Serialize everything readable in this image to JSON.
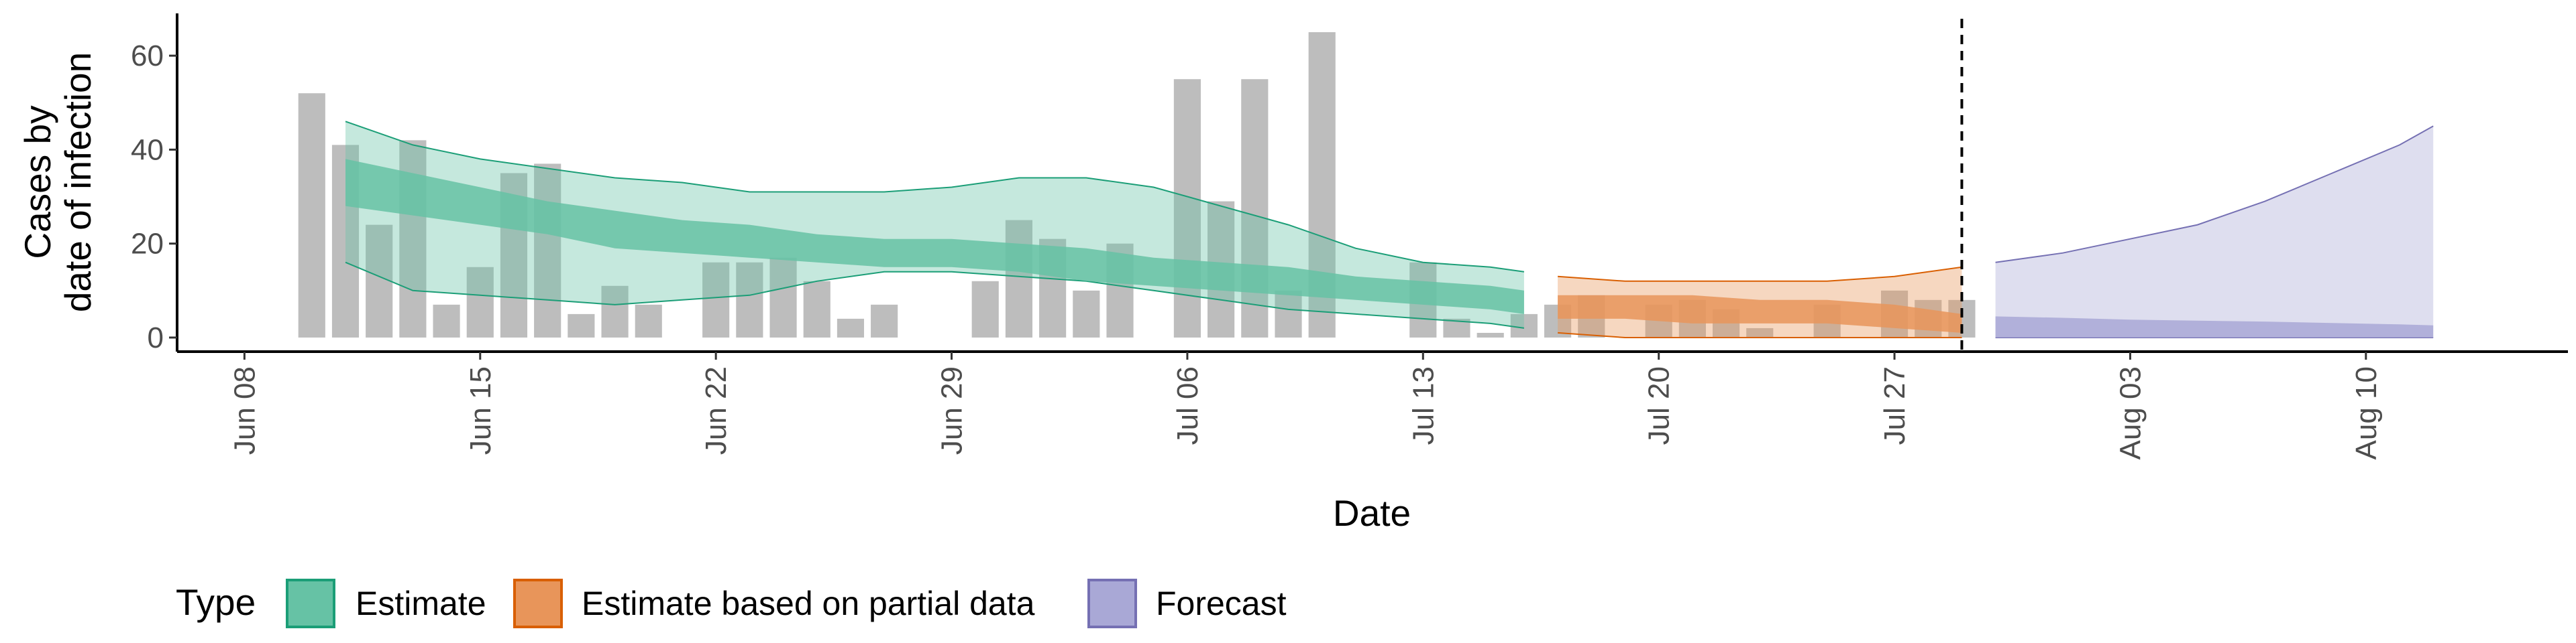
{
  "chart_data": {
    "type": "bar",
    "xlabel": "Date",
    "ylabel": [
      "Cases by",
      "date of infection"
    ],
    "x_ticks": [
      "Jun 08",
      "Jun 15",
      "Jun 22",
      "Jun 29",
      "Jul 06",
      "Jul 13",
      "Jul 20",
      "Jul 27",
      "Aug 03",
      "Aug 10"
    ],
    "x_range": [
      "2020-06-06",
      "2020-08-16"
    ],
    "ylim": [
      -3,
      69
    ],
    "y_ticks": [
      0,
      20,
      40,
      60
    ],
    "grid": false,
    "reference_line": {
      "date": "2020-07-29",
      "style": "dashed"
    },
    "legend": {
      "title": "Type",
      "position": "bottom",
      "entries": [
        {
          "label": "Estimate",
          "fill": "#66c2a5",
          "stroke": "#1b9e77"
        },
        {
          "label": "Estimate based on partial data",
          "fill": "#e8955a",
          "stroke": "#d95f02"
        },
        {
          "label": "Forecast",
          "fill": "#a9a8d6",
          "stroke": "#7570b3"
        }
      ]
    },
    "bars": {
      "color": "#bdbdbd",
      "dates": [
        "2020-06-10",
        "2020-06-11",
        "2020-06-12",
        "2020-06-13",
        "2020-06-14",
        "2020-06-15",
        "2020-06-16",
        "2020-06-17",
        "2020-06-18",
        "2020-06-19",
        "2020-06-20",
        "2020-06-21",
        "2020-06-22",
        "2020-06-23",
        "2020-06-24",
        "2020-06-25",
        "2020-06-26",
        "2020-06-27",
        "2020-06-28",
        "2020-06-29",
        "2020-06-30",
        "2020-07-01",
        "2020-07-02",
        "2020-07-03",
        "2020-07-04",
        "2020-07-05",
        "2020-07-06",
        "2020-07-07",
        "2020-07-08",
        "2020-07-09",
        "2020-07-10",
        "2020-07-11",
        "2020-07-12",
        "2020-07-13",
        "2020-07-14",
        "2020-07-15",
        "2020-07-16",
        "2020-07-17",
        "2020-07-18",
        "2020-07-19",
        "2020-07-20",
        "2020-07-21",
        "2020-07-22",
        "2020-07-23",
        "2020-07-24",
        "2020-07-25",
        "2020-07-26",
        "2020-07-27",
        "2020-07-28",
        "2020-07-29"
      ],
      "values": [
        52,
        41,
        24,
        42,
        7,
        15,
        35,
        37,
        5,
        11,
        7,
        0,
        16,
        16,
        17,
        12,
        4,
        7,
        0,
        0,
        12,
        25,
        21,
        10,
        20,
        0,
        55,
        29,
        55,
        10,
        65,
        0,
        0,
        16,
        4,
        1,
        5,
        7,
        9,
        0,
        7,
        8,
        6,
        2,
        0,
        7,
        0,
        10,
        8,
        8
      ]
    },
    "series": [
      {
        "name": "Estimate",
        "dates": [
          "2020-06-11",
          "2020-06-13",
          "2020-06-15",
          "2020-06-17",
          "2020-06-19",
          "2020-06-21",
          "2020-06-23",
          "2020-06-25",
          "2020-06-27",
          "2020-06-29",
          "2020-07-01",
          "2020-07-03",
          "2020-07-05",
          "2020-07-07",
          "2020-07-09",
          "2020-07-11",
          "2020-07-13",
          "2020-07-15",
          "2020-07-16"
        ],
        "outer_upper": [
          46,
          41,
          38,
          36,
          34,
          33,
          31,
          31,
          31,
          32,
          34,
          34,
          32,
          28,
          24,
          19,
          16,
          15,
          14
        ],
        "outer_lower": [
          16,
          10,
          9,
          8,
          7,
          8,
          9,
          12,
          14,
          14,
          13,
          12,
          10,
          8,
          6,
          5,
          4,
          3,
          2
        ],
        "inner_upper": [
          38,
          35,
          32,
          29,
          27,
          25,
          24,
          22,
          21,
          21,
          20,
          19,
          17,
          16,
          15,
          13,
          12,
          11,
          10
        ],
        "inner_lower": [
          28,
          26,
          24,
          22,
          19,
          18,
          17,
          16,
          15,
          15,
          14,
          12,
          11,
          10,
          9,
          8,
          7,
          6,
          5
        ]
      },
      {
        "name": "Estimate based on partial data",
        "dates": [
          "2020-07-17",
          "2020-07-19",
          "2020-07-21",
          "2020-07-23",
          "2020-07-25",
          "2020-07-27",
          "2020-07-29"
        ],
        "outer_upper": [
          13,
          12,
          12,
          12,
          12,
          13,
          15
        ],
        "outer_lower": [
          1,
          0,
          0,
          0,
          0,
          0,
          0
        ],
        "inner_upper": [
          9,
          9,
          9,
          8,
          8,
          7,
          5
        ],
        "inner_lower": [
          4,
          4,
          3,
          3,
          3,
          2,
          1
        ]
      },
      {
        "name": "Forecast",
        "dates": [
          "2020-07-30",
          "2020-08-01",
          "2020-08-03",
          "2020-08-05",
          "2020-08-07",
          "2020-08-09",
          "2020-08-11",
          "2020-08-12"
        ],
        "outer_upper": [
          16,
          18,
          21,
          24,
          29,
          35,
          41,
          45
        ],
        "outer_lower": [
          0,
          0,
          0,
          0,
          0,
          0,
          0,
          0
        ],
        "inner_upper": [
          4.5,
          4.2,
          3.8,
          3.6,
          3.4,
          3.1,
          2.8,
          2.6
        ],
        "inner_lower": [
          0,
          0,
          0,
          0,
          0,
          0,
          0,
          0
        ]
      }
    ]
  }
}
